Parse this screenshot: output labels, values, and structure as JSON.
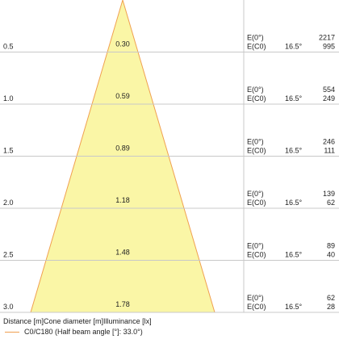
{
  "colors": {
    "cone_fill": "#faf6a6",
    "cone_stroke": "#f0a050",
    "grid": "#c8c8c8",
    "text": "#222222"
  },
  "chart_data": {
    "type": "cone-diagram",
    "columns": [
      "Distance [m]",
      "Cone diameter [m]",
      "Illuminance [lx]"
    ],
    "rows": [
      {
        "distance": "0.5",
        "diameter": "0.30",
        "labels": [
          "E(0°)",
          "E(C0)"
        ],
        "angle": "16.5°",
        "e0": "2217",
        "ec0": "995"
      },
      {
        "distance": "1.0",
        "diameter": "0.59",
        "labels": [
          "E(0°)",
          "E(C0)"
        ],
        "angle": "16.5°",
        "e0": "554",
        "ec0": "249"
      },
      {
        "distance": "1.5",
        "diameter": "0.89",
        "labels": [
          "E(0°)",
          "E(C0)"
        ],
        "angle": "16.5°",
        "e0": "246",
        "ec0": "111"
      },
      {
        "distance": "2.0",
        "diameter": "1.18",
        "labels": [
          "E(0°)",
          "E(C0)"
        ],
        "angle": "16.5°",
        "e0": "139",
        "ec0": "62"
      },
      {
        "distance": "2.5",
        "diameter": "1.48",
        "labels": [
          "E(0°)",
          "E(C0)"
        ],
        "angle": "16.5°",
        "e0": "89",
        "ec0": "40"
      },
      {
        "distance": "3.0",
        "diameter": "1.78",
        "labels": [
          "E(0°)",
          "E(C0)"
        ],
        "angle": "16.5°",
        "e0": "62",
        "ec0": "28"
      }
    ],
    "legend": "C0/C180 (Half beam angle [°]: 33.0°)"
  }
}
